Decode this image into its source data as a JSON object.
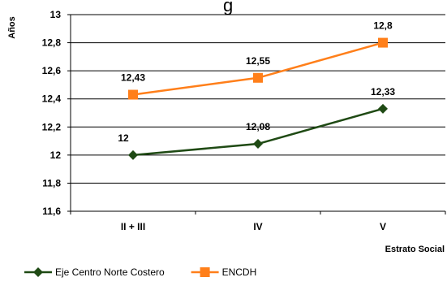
{
  "chart_data": {
    "type": "line",
    "title": "",
    "title_fragment": "g",
    "ylabel": "Años",
    "xlabel": "Estrato Social",
    "categories": [
      "II + III",
      "IV",
      "V"
    ],
    "ylim": [
      11.6,
      13
    ],
    "y_ticks": [
      11.6,
      11.8,
      12,
      12.2,
      12.4,
      12.6,
      12.8,
      13
    ],
    "y_tick_labels": [
      "11,6",
      "11,8",
      "12",
      "12,2",
      "12,4",
      "12,6",
      "12,8",
      "13"
    ],
    "grid": "horizontal",
    "legend_position": "bottom-left",
    "series": [
      {
        "name": "Eje Centro Norte Costero",
        "values": [
          12,
          12.08,
          12.33
        ],
        "labels": [
          "12",
          "12,08",
          "12,33"
        ],
        "color": "#1f4a14",
        "marker": "diamond"
      },
      {
        "name": "ENCDH",
        "values": [
          12.43,
          12.55,
          12.8
        ],
        "labels": [
          "12,43",
          "12,55",
          "12,8"
        ],
        "color": "#ff7f1a",
        "marker": "square"
      }
    ]
  }
}
